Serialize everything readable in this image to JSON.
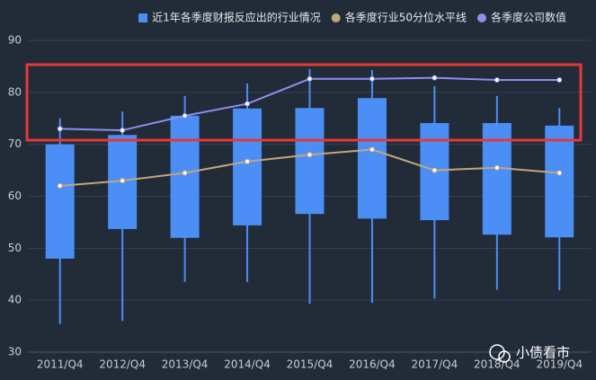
{
  "chart_data": {
    "type": "boxplot",
    "categories": [
      "2011/Q4",
      "2012/Q4",
      "2013/Q4",
      "2014/Q4",
      "2015/Q4",
      "2016/Q4",
      "2017/Q4",
      "2018/Q4",
      "2019/Q4"
    ],
    "ylim": [
      30,
      90
    ],
    "yticks": [
      30,
      40,
      50,
      60,
      70,
      80,
      90
    ],
    "grid": true,
    "legend_position": "top-right",
    "series": [
      {
        "name": "近1年各季度财报反应出的行业情况",
        "type": "box",
        "color": "#4b8ef5",
        "low": [
          35.4,
          36,
          43.5,
          43.5,
          39.3,
          39.5,
          40.3,
          42,
          41.9
        ],
        "q1": [
          48,
          53.7,
          52,
          54.4,
          56.6,
          55.7,
          55.4,
          52.6,
          52.1
        ],
        "q3": [
          70,
          71.8,
          75.5,
          76.9,
          77,
          78.9,
          74.1,
          74.1,
          73.6
        ],
        "high": [
          75,
          76.3,
          79.3,
          81.7,
          84.5,
          84.3,
          81.2,
          79.3,
          77
        ]
      },
      {
        "name": "各季度行业50分位水平线",
        "type": "line",
        "color": "#c4a57c",
        "values": [
          62,
          63,
          64.5,
          66.7,
          68,
          69,
          65,
          65.5,
          64.5
        ]
      },
      {
        "name": "各季度公司数值",
        "type": "line",
        "color": "#8c8ef2",
        "values": [
          73,
          72.7,
          75.5,
          77.8,
          82.6,
          82.6,
          82.8,
          82.4,
          82.4
        ]
      }
    ],
    "watermark": "小债看市"
  }
}
